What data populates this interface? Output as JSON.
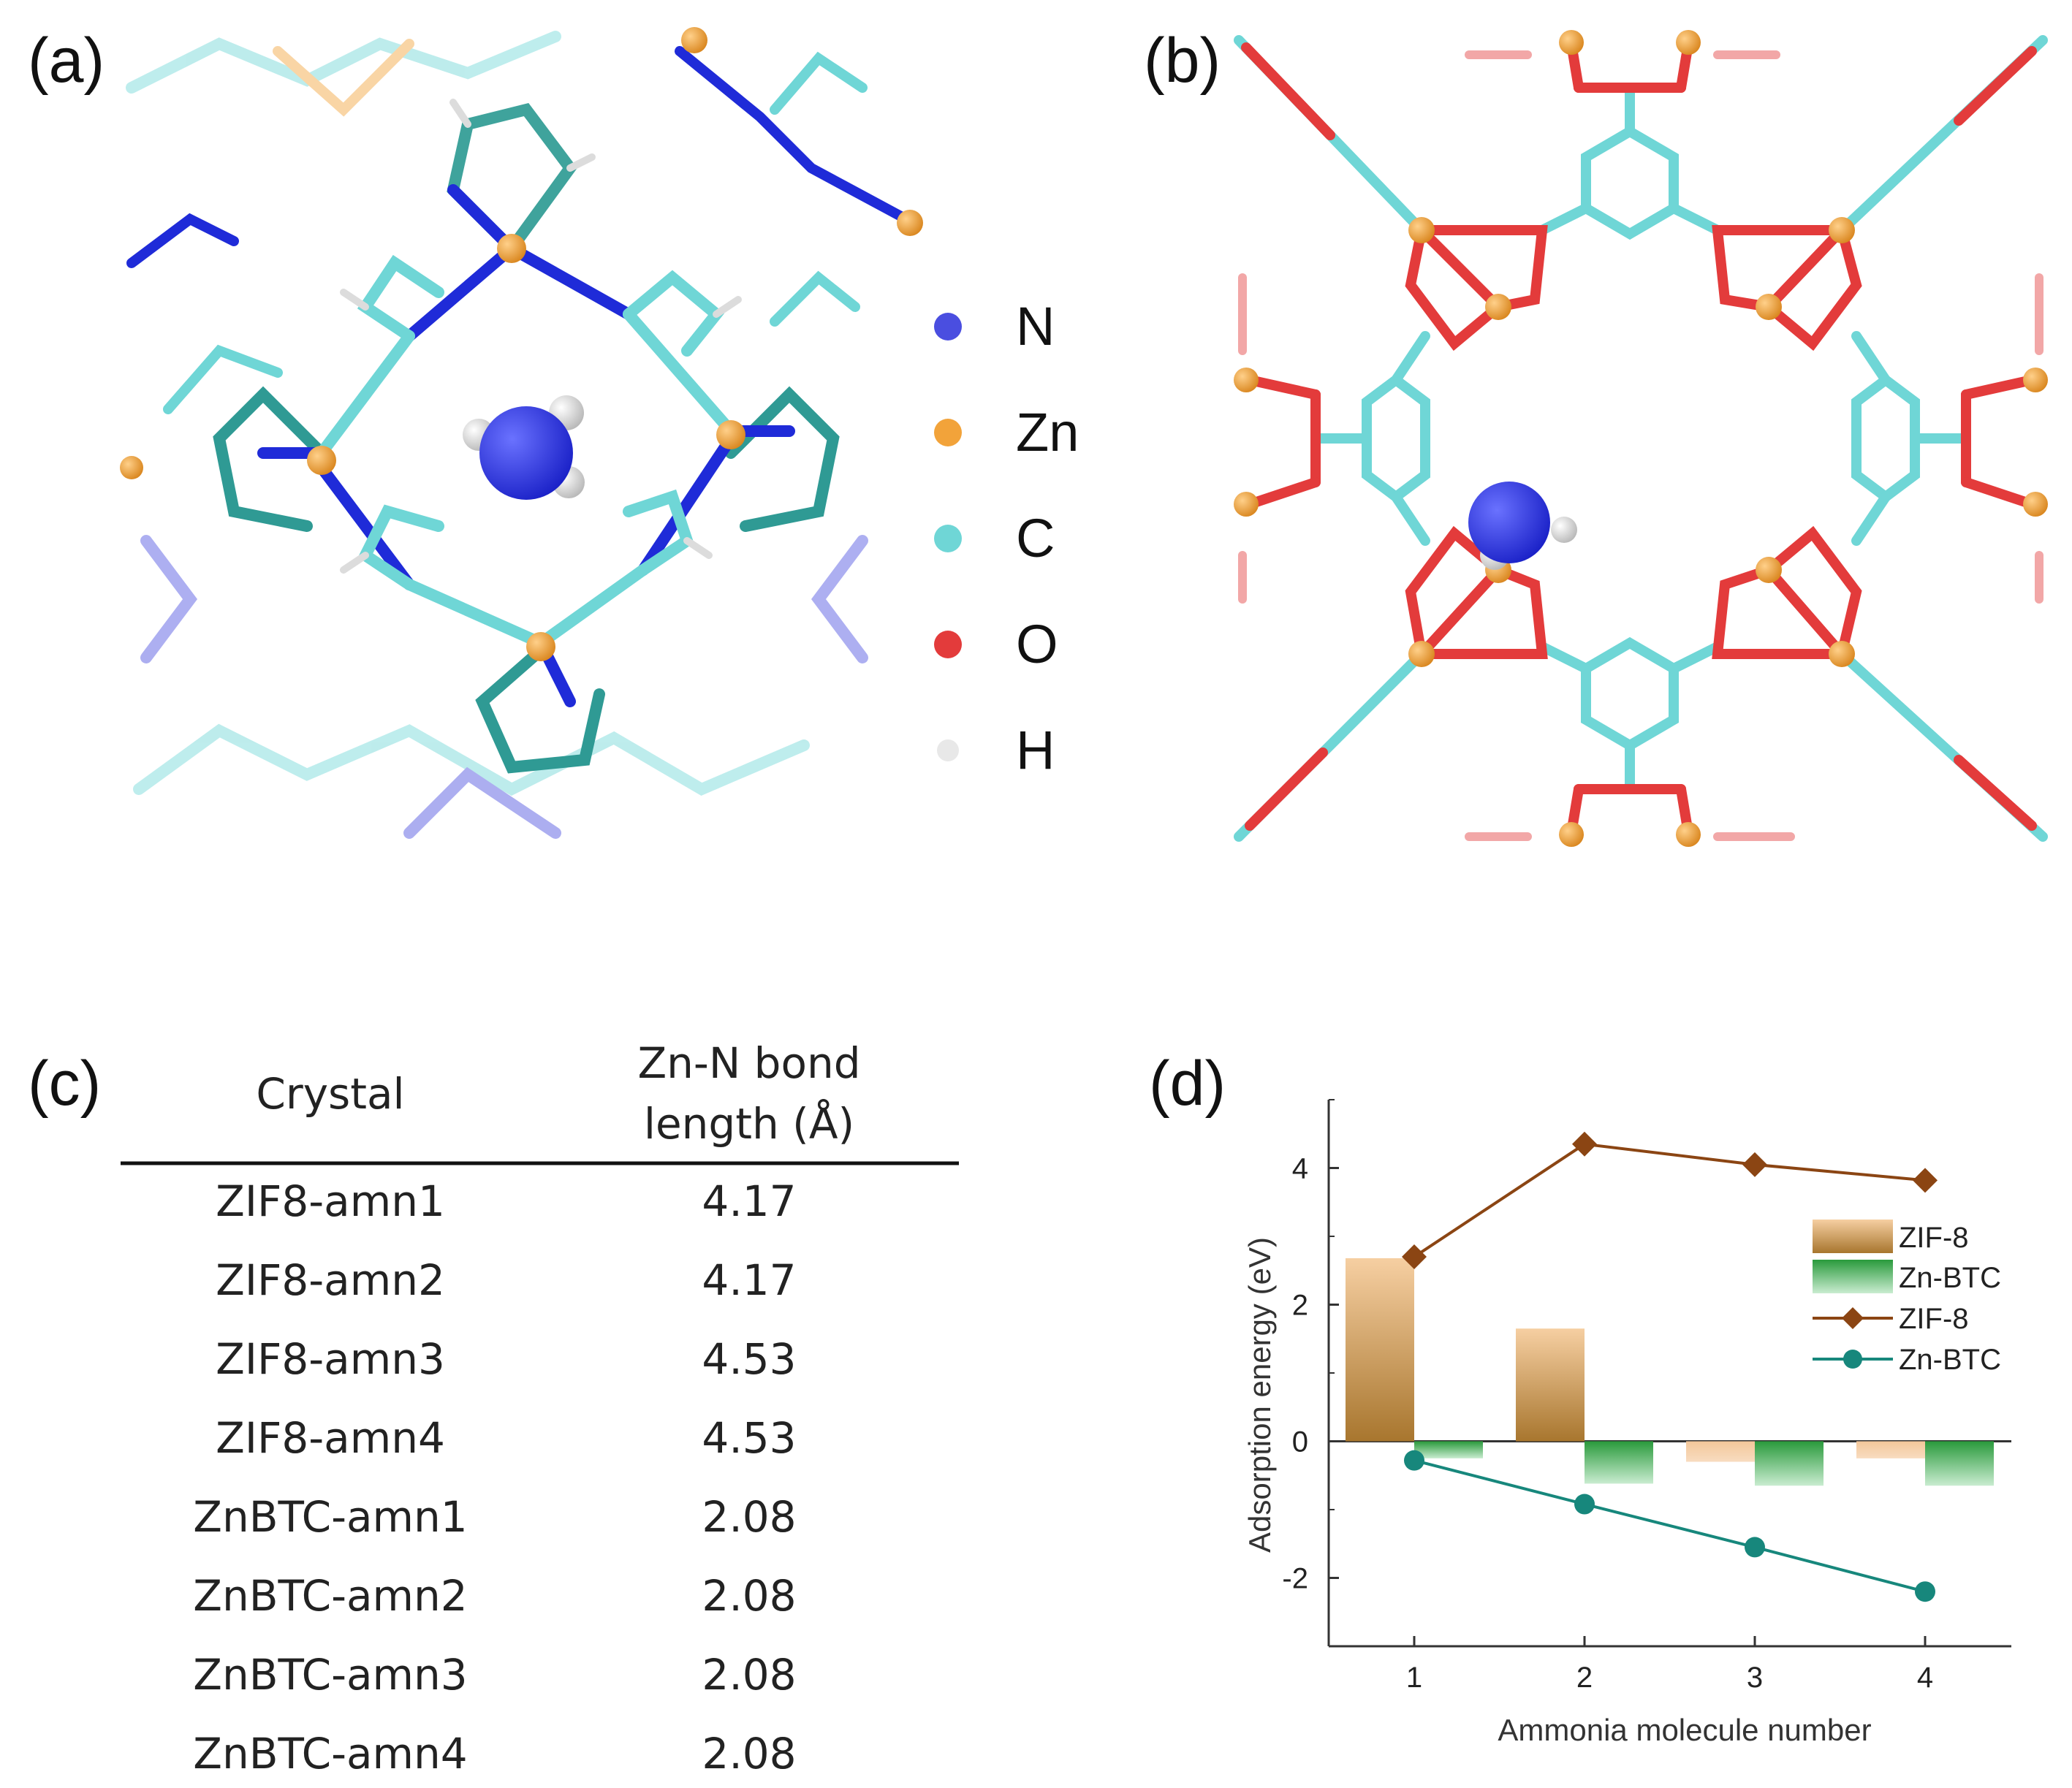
{
  "panels": {
    "a": "(a)",
    "b": "(b)",
    "c": "(c)",
    "d": "(d)"
  },
  "element_legend": [
    {
      "symbol": "N",
      "color": "#4a4ee0"
    },
    {
      "symbol": "Zn",
      "color": "#f2a33a"
    },
    {
      "symbol": "C",
      "color": "#6fd6d6"
    },
    {
      "symbol": "O",
      "color": "#e33b3b"
    },
    {
      "symbol": "H",
      "color": "#e8e8e8"
    }
  ],
  "table": {
    "headers": {
      "crystal": "Crystal",
      "bond_line1": "Zn-N bond",
      "bond_line2": "length (Å)"
    },
    "rows": [
      {
        "crystal": "ZIF8-amn1",
        "length": "4.17"
      },
      {
        "crystal": "ZIF8-amn2",
        "length": "4.17"
      },
      {
        "crystal": "ZIF8-amn3",
        "length": "4.53"
      },
      {
        "crystal": "ZIF8-amn4",
        "length": "4.53"
      },
      {
        "crystal": "ZnBTC-amn1",
        "length": "2.08"
      },
      {
        "crystal": "ZnBTC-amn2",
        "length": "2.08"
      },
      {
        "crystal": "ZnBTC-amn3",
        "length": "2.08"
      },
      {
        "crystal": "ZnBTC-amn4",
        "length": "2.08"
      }
    ]
  },
  "chart_data": {
    "type": "bar",
    "xlabel": "Ammonia molecule number",
    "ylabel": "Adsorption energy (eV)",
    "categories": [
      "1",
      "2",
      "3",
      "4"
    ],
    "ylim": [
      -3,
      5
    ],
    "yticks": [
      "-2",
      "0",
      "2",
      "4"
    ],
    "ytick_values": [
      -2,
      0,
      2,
      4
    ],
    "bar_series": [
      {
        "name": "ZIF-8",
        "values": [
          2.68,
          1.65,
          -0.3,
          -0.25
        ],
        "color": "#c8965a"
      },
      {
        "name": "Zn-BTC",
        "values": [
          -0.25,
          -0.62,
          -0.65,
          -0.65
        ],
        "color": "#2f9a3e"
      }
    ],
    "line_series": [
      {
        "name": "ZIF-8",
        "values": [
          2.7,
          4.35,
          4.05,
          3.82
        ],
        "color": "#8b4513",
        "marker": "diamond"
      },
      {
        "name": "Zn-BTC",
        "values": [
          -0.28,
          -0.92,
          -1.55,
          -2.2
        ],
        "color": "#17877c",
        "marker": "circle"
      }
    ]
  }
}
